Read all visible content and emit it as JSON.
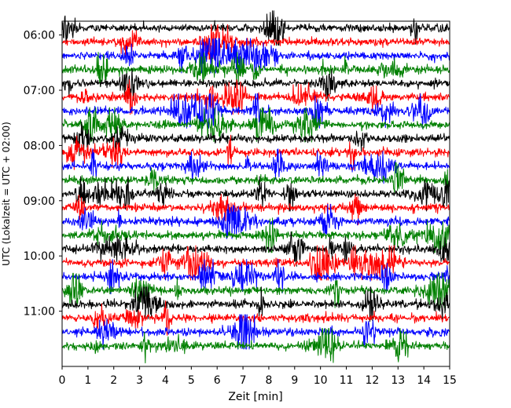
{
  "chart_data": {
    "type": "line",
    "title": "",
    "xlabel": "Zeit  [min]",
    "ylabel": "UTC (Lokalzeit = UTC + 02:00)",
    "xlim": [
      0,
      15
    ],
    "x_ticks": [
      "0",
      "1",
      "2",
      "3",
      "4",
      "5",
      "6",
      "7",
      "8",
      "9",
      "10",
      "11",
      "12",
      "13",
      "14",
      "15"
    ],
    "y_ticks": [
      "06:00",
      "07:00",
      "08:00",
      "09:00",
      "10:00",
      "11:00"
    ],
    "ylim": [
      "05:45",
      "12:00"
    ],
    "grid": false,
    "legend": "none",
    "trace_interval_minutes": 15,
    "trace_start": "05:45",
    "trace_colors": [
      "#000000",
      "#ff0000",
      "#0000ff",
      "#008000"
    ],
    "traces": [
      "05:45",
      "06:00",
      "06:15",
      "06:30",
      "06:45",
      "07:00",
      "07:15",
      "07:30",
      "07:45",
      "08:00",
      "08:15",
      "08:30",
      "08:45",
      "09:00",
      "09:15",
      "09:30",
      "09:45",
      "10:00",
      "10:15",
      "10:30",
      "10:45",
      "11:00",
      "11:15",
      "11:30"
    ]
  }
}
